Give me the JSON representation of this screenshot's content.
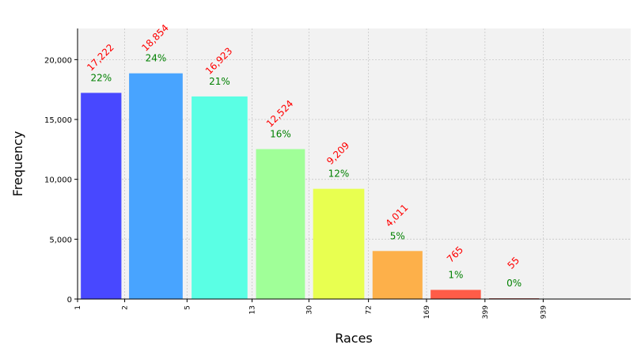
{
  "chart_data": {
    "type": "bar",
    "xlabel": "Races",
    "ylabel": "Frequency",
    "x_tick_labels": [
      "1",
      "2",
      "5",
      "13",
      "30",
      "72",
      "169",
      "399",
      "939"
    ],
    "y_ticks": [
      0,
      5000,
      10000,
      15000,
      20000
    ],
    "y_tick_labels": [
      "0",
      "5,000",
      "10,000",
      "15,000",
      "20,000"
    ],
    "ylim": [
      0,
      22600
    ],
    "bins": [
      {
        "lo": 1,
        "hi": 2,
        "value": 17222,
        "count_label": "17,222",
        "pct_label": "22%",
        "color": "#4848ff"
      },
      {
        "lo": 2,
        "hi": 5,
        "value": 18854,
        "count_label": "18,854",
        "pct_label": "24%",
        "color": "#48a4ff"
      },
      {
        "lo": 5,
        "hi": 13,
        "value": 16923,
        "count_label": "16,923",
        "pct_label": "21%",
        "color": "#5affe4"
      },
      {
        "lo": 13,
        "hi": 30,
        "value": 12524,
        "count_label": "12,524",
        "pct_label": "16%",
        "color": "#a0ff98"
      },
      {
        "lo": 30,
        "hi": 72,
        "value": 9209,
        "count_label": "9,209",
        "pct_label": "12%",
        "color": "#e8ff50"
      },
      {
        "lo": 72,
        "hi": 169,
        "value": 4011,
        "count_label": "4,011",
        "pct_label": "5%",
        "color": "#fdb04a"
      },
      {
        "lo": 169,
        "hi": 399,
        "value": 765,
        "count_label": "765",
        "pct_label": "1%",
        "color": "#ff5c48"
      },
      {
        "lo": 399,
        "hi": 939,
        "value": 55,
        "count_label": "55",
        "pct_label": "0%",
        "color": "#9e1810"
      }
    ],
    "grid": true,
    "colors": {
      "plot_background": "#f2f2f2",
      "count_label": "#ff0000",
      "pct_label": "#008000",
      "grid": "#c8c8c8"
    }
  }
}
